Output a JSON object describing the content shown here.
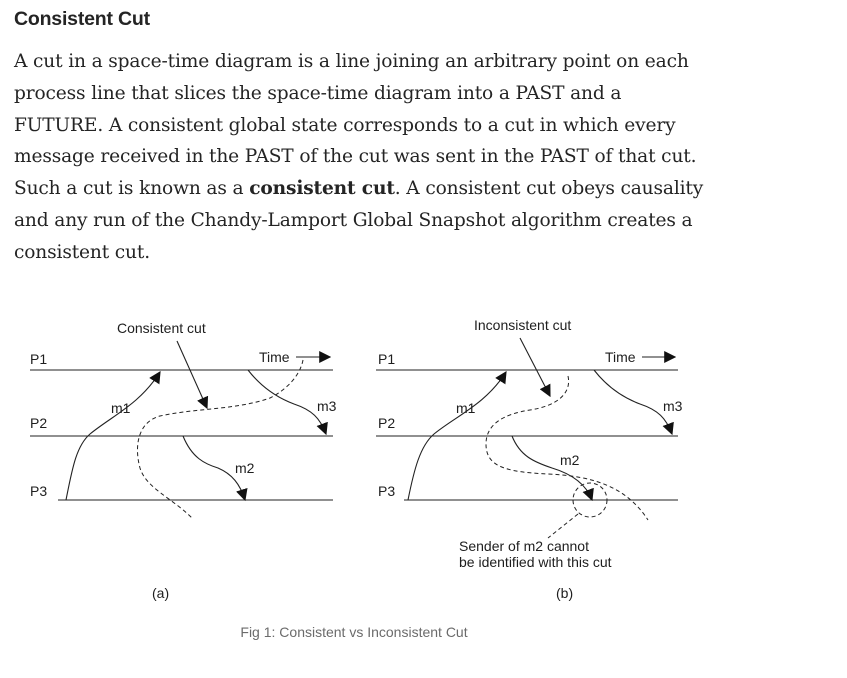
{
  "heading": "Consistent Cut",
  "paragraph": {
    "part1": "A cut in a space-time diagram is a line joining an arbitrary point on each process line that slices the space-time diagram into a PAST and a FUTURE. A consistent global state corresponds to a cut in which every message received in the PAST of the cut was sent in the PAST of that cut. Such a cut is known as a ",
    "bold": "consistent cut",
    "part2": ". A consistent cut obeys causality and any run of the Chandy-Lamport Global Snapshot algorithm creates a consistent cut."
  },
  "figure": {
    "left": {
      "title": "Consistent cut",
      "time": "Time",
      "processes": [
        "P1",
        "P2",
        "P3"
      ],
      "messages": [
        "m1",
        "m2",
        "m3"
      ],
      "sublabel": "(a)"
    },
    "right": {
      "title": "Inconsistent cut",
      "time": "Time",
      "processes": [
        "P1",
        "P2",
        "P3"
      ],
      "messages": [
        "m1",
        "m2",
        "m3"
      ],
      "note_line1": "Sender of m2 cannot",
      "note_line2": "be identified with this cut",
      "sublabel": "(b)"
    },
    "caption": "Fig 1: Consistent vs Inconsistent Cut"
  }
}
